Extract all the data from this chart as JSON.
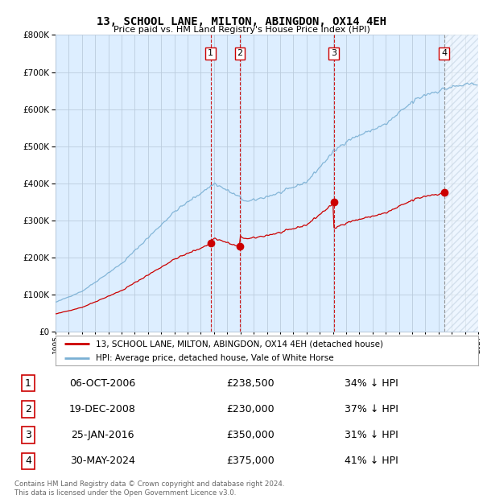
{
  "title": "13, SCHOOL LANE, MILTON, ABINGDON, OX14 4EH",
  "subtitle": "Price paid vs. HM Land Registry's House Price Index (HPI)",
  "legend_property": "13, SCHOOL LANE, MILTON, ABINGDON, OX14 4EH (detached house)",
  "legend_hpi": "HPI: Average price, detached house, Vale of White Horse",
  "footer": "Contains HM Land Registry data © Crown copyright and database right 2024.\nThis data is licensed under the Open Government Licence v3.0.",
  "transactions": [
    {
      "num": 1,
      "date": "06-OCT-2006",
      "price": "£238,500",
      "pct": "34% ↓ HPI",
      "year": 2006.75
    },
    {
      "num": 2,
      "date": "19-DEC-2008",
      "price": "£230,000",
      "pct": "37% ↓ HPI",
      "year": 2008.96
    },
    {
      "num": 3,
      "date": "25-JAN-2016",
      "price": "£350,000",
      "pct": "31% ↓ HPI",
      "year": 2016.07
    },
    {
      "num": 4,
      "date": "30-MAY-2024",
      "price": "£375,000",
      "pct": "41% ↓ HPI",
      "year": 2024.42
    }
  ],
  "purchase_prices": [
    238500,
    230000,
    350000,
    375000
  ],
  "purchase_years": [
    2006.75,
    2008.96,
    2016.07,
    2024.42
  ],
  "property_color": "#cc0000",
  "hpi_color": "#7ab0d4",
  "vline_color": "#cc0000",
  "vline4_color": "#888888",
  "background_color": "#ffffff",
  "chart_bg_color": "#ddeeff",
  "grid_color": "#bbccdd",
  "hatch_color": "#bbccdd",
  "xlim": [
    1995,
    2027
  ],
  "ylim": [
    0,
    800000
  ],
  "yticks": [
    0,
    100000,
    200000,
    300000,
    400000,
    500000,
    600000,
    700000,
    800000
  ]
}
